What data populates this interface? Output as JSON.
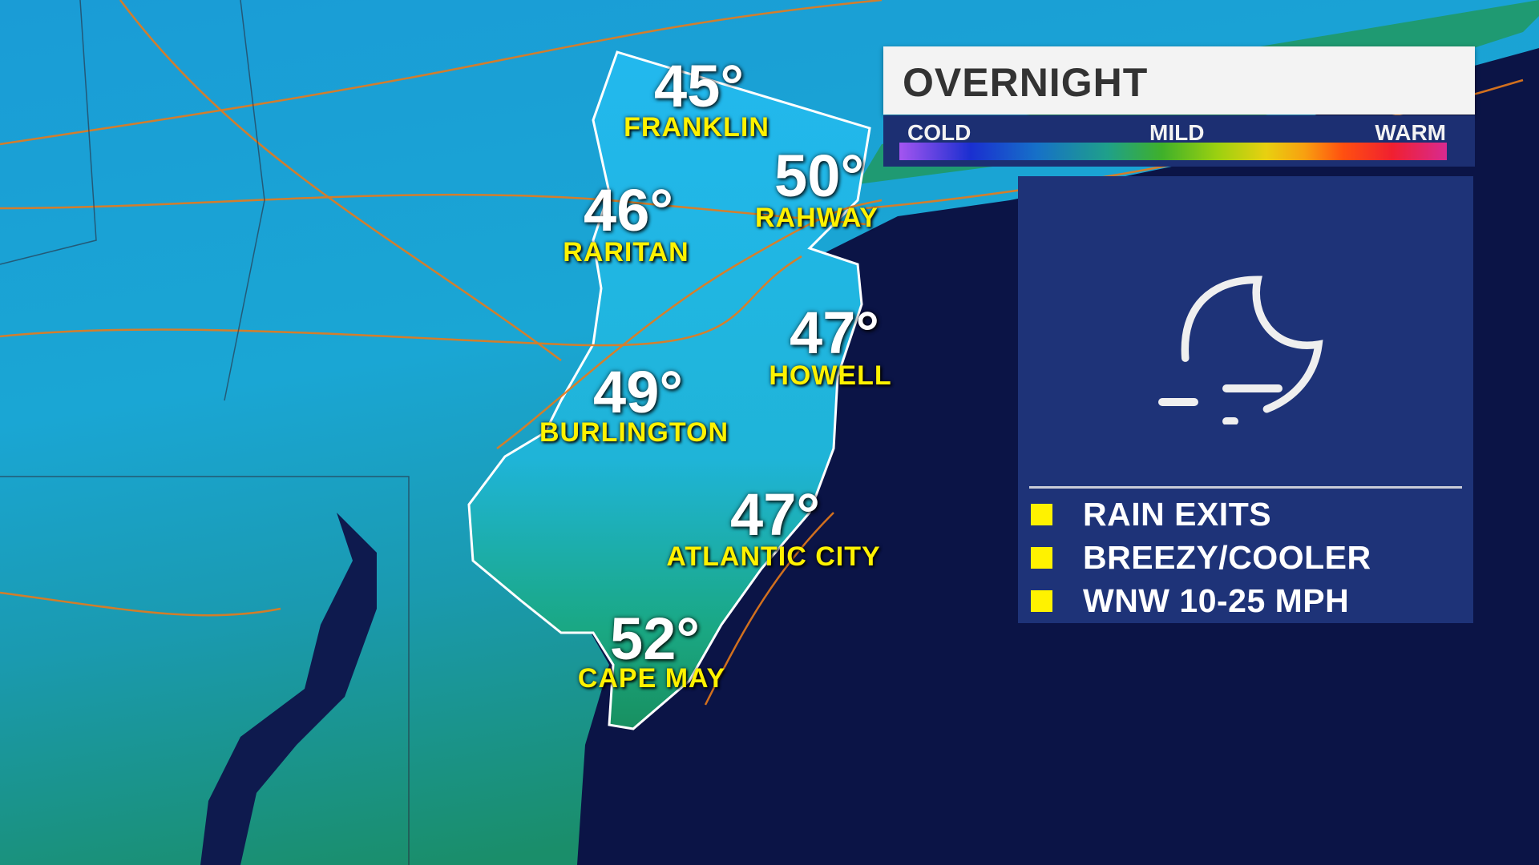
{
  "header": {
    "title": "OVERNIGHT"
  },
  "scale": {
    "cold_label": "COLD",
    "mild_label": "MILD",
    "warm_label": "WARM"
  },
  "forecast_icon": "night-moon-fog-icon",
  "locations": [
    {
      "temp": "45°",
      "name": "FRANKLIN"
    },
    {
      "temp": "50°",
      "name": "RAHWAY"
    },
    {
      "temp": "46°",
      "name": "RARITAN"
    },
    {
      "temp": "47°",
      "name": "HOWELL"
    },
    {
      "temp": "49°",
      "name": "BURLINGTON"
    },
    {
      "temp": "47°",
      "name": "ATLANTIC CITY"
    },
    {
      "temp": "52°",
      "name": "CAPE MAY"
    }
  ],
  "bullets": [
    "RAIN EXITS",
    "BREEZY/COOLER",
    "WNW 10-25 MPH"
  ],
  "colors": {
    "label_yellow": "#fff200",
    "panel_blue": "#1e3378",
    "ocean": "#0b1446",
    "land_cyan": "#1aa8d8",
    "land_green": "#1f9a78",
    "roads": "#e87a1a"
  }
}
